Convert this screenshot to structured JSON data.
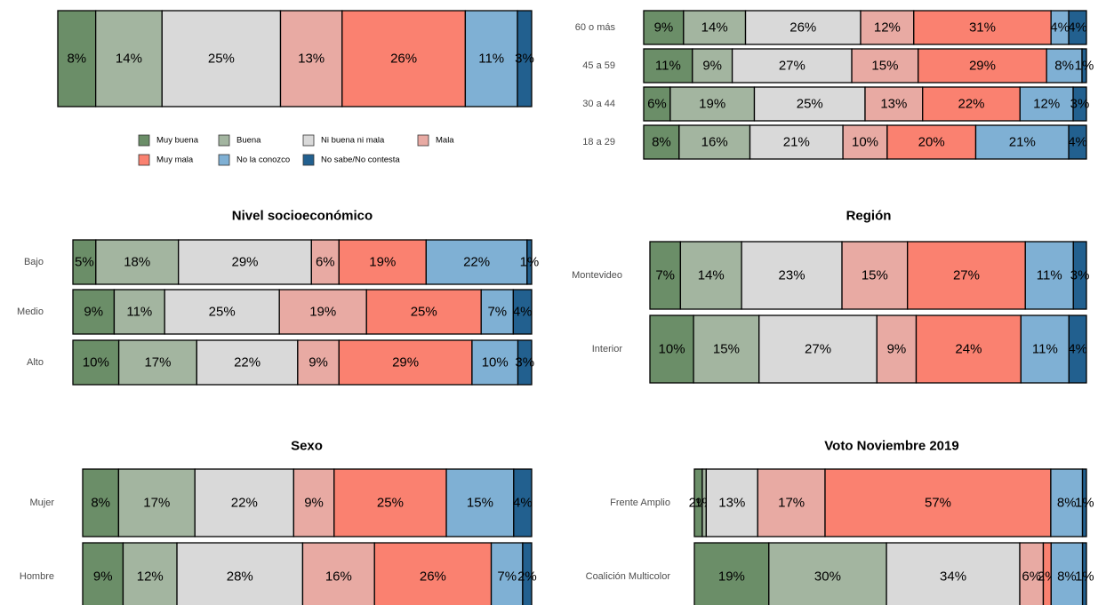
{
  "chart_data": {
    "type": "bar",
    "stacked": "percent",
    "orientation": "horizontal",
    "legend": {
      "placement": "below top-left panel",
      "entries": [
        {
          "name": "Muy buena",
          "color": "#6b8e68"
        },
        {
          "name": "Buena",
          "color": "#a3b5a0"
        },
        {
          "name": "Ni buena ni mala",
          "color": "#d9d9d9"
        },
        {
          "name": "Mala",
          "color": "#e8aaa3"
        },
        {
          "name": "Muy mala",
          "color": "#fa8170"
        },
        {
          "name": "No la conozco",
          "color": "#7fb0d4"
        },
        {
          "name": "No sabe/No contesta",
          "color": "#22608f"
        }
      ]
    },
    "panels": [
      {
        "title": "",
        "rows": [
          {
            "label": "",
            "values": [
              8,
              14,
              25,
              13,
              26,
              11,
              3
            ],
            "labels": [
              "8%",
              "14%",
              "25%",
              "13%",
              "26%",
              "11%",
              "3%"
            ]
          }
        ]
      },
      {
        "title": "",
        "rows": [
          {
            "label": "60 o más",
            "values": [
              9,
              14,
              26,
              12,
              31,
              4,
              4
            ],
            "labels": [
              "9%",
              "14%",
              "26%",
              "12%",
              "31%",
              "4%",
              "4%"
            ]
          },
          {
            "label": "45 a 59",
            "values": [
              11,
              9,
              27,
              15,
              29,
              8,
              1
            ],
            "labels": [
              "11%",
              "9%",
              "27%",
              "15%",
              "29%",
              "8%",
              "1%"
            ]
          },
          {
            "label": "30 a 44",
            "values": [
              6,
              19,
              25,
              13,
              22,
              12,
              3
            ],
            "labels": [
              "6%",
              "19%",
              "25%",
              "13%",
              "22%",
              "12%",
              "3%"
            ]
          },
          {
            "label": "18 a 29",
            "values": [
              8,
              16,
              21,
              10,
              20,
              21,
              4
            ],
            "labels": [
              "8%",
              "16%",
              "21%",
              "10%",
              "20%",
              "21%",
              "4%"
            ]
          }
        ]
      },
      {
        "title": "Nivel socioeconómico",
        "rows": [
          {
            "label": "Bajo",
            "values": [
              5,
              18,
              29,
              6,
              19,
              22,
              1
            ],
            "labels": [
              "5%",
              "18%",
              "29%",
              "6%",
              "19%",
              "22%",
              "1%"
            ]
          },
          {
            "label": "Medio",
            "values": [
              9,
              11,
              25,
              19,
              25,
              7,
              4
            ],
            "labels": [
              "9%",
              "11%",
              "25%",
              "19%",
              "25%",
              "7%",
              "4%"
            ]
          },
          {
            "label": "Alto",
            "values": [
              10,
              17,
              22,
              9,
              29,
              10,
              3
            ],
            "labels": [
              "10%",
              "17%",
              "22%",
              "9%",
              "29%",
              "10%",
              "3%"
            ]
          }
        ]
      },
      {
        "title": "Región",
        "rows": [
          {
            "label": "Montevideo",
            "values": [
              7,
              14,
              23,
              15,
              27,
              11,
              3
            ],
            "labels": [
              "7%",
              "14%",
              "23%",
              "15%",
              "27%",
              "11%",
              "3%"
            ]
          },
          {
            "label": "Interior",
            "values": [
              10,
              15,
              27,
              9,
              24,
              11,
              4
            ],
            "labels": [
              "10%",
              "15%",
              "27%",
              "9%",
              "24%",
              "11%",
              "4%"
            ]
          }
        ]
      },
      {
        "title": "Sexo",
        "rows": [
          {
            "label": "Mujer",
            "values": [
              8,
              17,
              22,
              9,
              25,
              15,
              4
            ],
            "labels": [
              "8%",
              "17%",
              "22%",
              "9%",
              "25%",
              "15%",
              "4%"
            ]
          },
          {
            "label": "Hombre",
            "values": [
              9,
              12,
              28,
              16,
              26,
              7,
              2
            ],
            "labels": [
              "9%",
              "12%",
              "28%",
              "16%",
              "26%",
              "7%",
              "2%"
            ]
          }
        ]
      },
      {
        "title": "Voto Noviembre 2019",
        "rows": [
          {
            "label": "Frente Amplio",
            "values": [
              2,
              1,
              13,
              17,
              57,
              8,
              1
            ],
            "labels": [
              "2%",
              "1%",
              "13%",
              "17%",
              "57%",
              "8%",
              "1%"
            ]
          },
          {
            "label": "Coalición Multicolor",
            "values": [
              19,
              30,
              34,
              6,
              2,
              8,
              1
            ],
            "labels": [
              "19%",
              "30%",
              "34%",
              "6%",
              "2%",
              "8%",
              "1%"
            ]
          }
        ]
      }
    ]
  }
}
